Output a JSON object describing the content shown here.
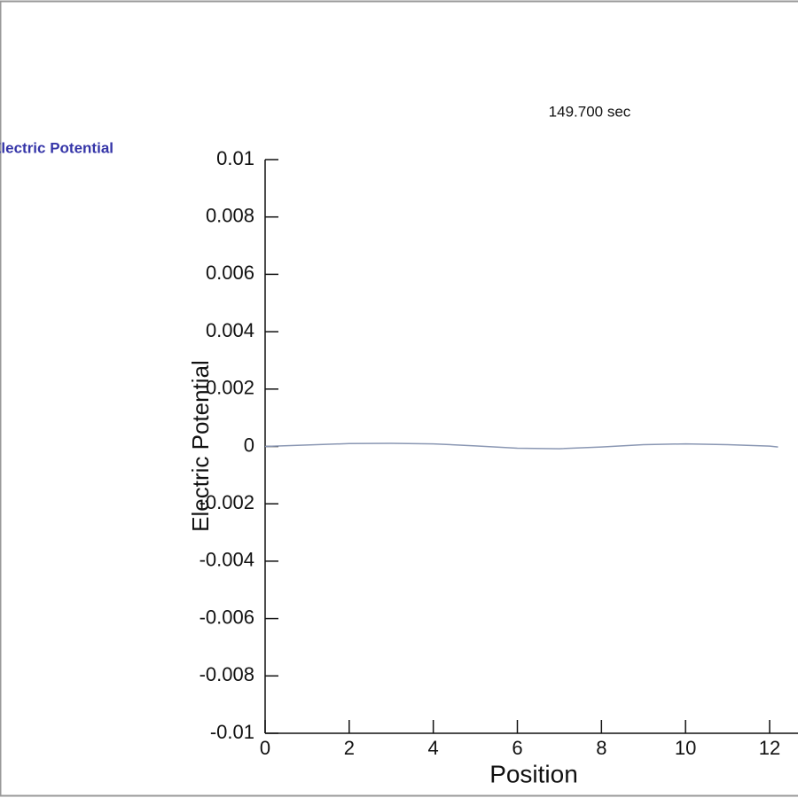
{
  "chart_data": {
    "type": "line",
    "title": "149.700 sec",
    "xlabel": "Position",
    "ylabel": "Electric Potential",
    "x": [
      0,
      1,
      2,
      3,
      4,
      5,
      6,
      7,
      8,
      9,
      10,
      11,
      12,
      12.2
    ],
    "series": [
      {
        "name": "Electric Potential",
        "color": "#8a97b3",
        "values": [
          0,
          5e-05,
          0.0001,
          0.00011,
          9e-05,
          2e-05,
          -6e-05,
          -8e-05,
          -2e-05,
          6e-05,
          9e-05,
          6e-05,
          1e-05,
          -2e-05
        ]
      }
    ],
    "xlim": [
      0,
      12.5
    ],
    "xticks": [
      0,
      2,
      4,
      6,
      8,
      10,
      12
    ],
    "ylim": [
      -0.01,
      0.01
    ],
    "yticks": [
      -0.01,
      -0.008,
      -0.006,
      -0.004,
      -0.002,
      0,
      0.002,
      0.004,
      0.006,
      0.008,
      0.01
    ],
    "legend_color": "#3535a8"
  }
}
